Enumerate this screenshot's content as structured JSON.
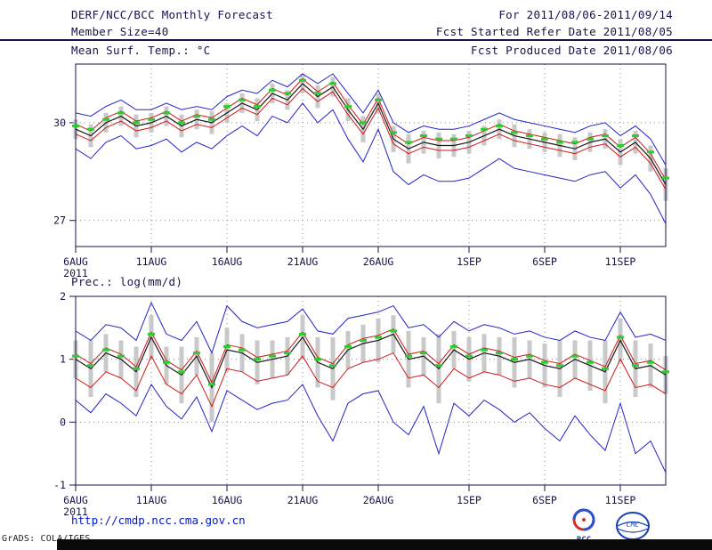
{
  "header": {
    "title": "DERF/NCC/BCC Monthly Forecast",
    "forecast_range": "For 2011/08/06-2011/09/14",
    "member_size": "Member Size=40",
    "refer_date": "Fcst Started Refer Date 2011/08/05",
    "produced_date": "Fcst Produced Date 2011/08/06"
  },
  "footer": {
    "url": "http://cmdp.ncc.cma.gov.cn",
    "credit": "GrADS: COLA/IGES",
    "logo_left_label": "BCC",
    "logo_right_label": "CMC"
  },
  "chart_data": [
    {
      "type": "line",
      "title": "Mean Surf. Temp.: °C",
      "x": {
        "count": 40,
        "start": "6AUG2011",
        "end": "14SEP2011",
        "year": "2011",
        "tick_positions": [
          0,
          5,
          10,
          15,
          20,
          26,
          31,
          36
        ],
        "tick_labels": [
          "6AUG",
          "11AUG",
          "16AUG",
          "21AUG",
          "26AUG",
          "1SEP",
          "6SEP",
          "11SEP"
        ]
      },
      "ylim": [
        26.2,
        31.8
      ],
      "yticks": [
        27,
        30
      ],
      "grid": "dotted",
      "axis_color": "#15154a",
      "spread_bars": {
        "name": "ensemble-spread-bar",
        "color": "#c9c9c9",
        "low": [
          29.5,
          29.25,
          29.7,
          29.9,
          29.55,
          29.7,
          29.9,
          29.55,
          29.8,
          29.65,
          30.0,
          30.3,
          30.05,
          30.6,
          30.4,
          30.9,
          30.45,
          30.8,
          30.05,
          29.4,
          30.3,
          29.1,
          28.75,
          29.05,
          28.9,
          28.95,
          29.05,
          29.3,
          29.5,
          29.25,
          29.2,
          29.1,
          28.95,
          28.85,
          29.1,
          29.2,
          28.7,
          29.05,
          28.5,
          27.6
        ],
        "high": [
          30.1,
          29.95,
          30.3,
          30.5,
          30.25,
          30.3,
          30.5,
          30.25,
          30.4,
          30.35,
          30.6,
          30.9,
          30.75,
          31.2,
          31.0,
          31.5,
          31.15,
          31.4,
          30.75,
          30.2,
          30.9,
          29.9,
          29.65,
          29.75,
          29.7,
          29.65,
          29.75,
          29.9,
          30.1,
          29.95,
          29.8,
          29.7,
          29.65,
          29.55,
          29.7,
          29.8,
          29.5,
          29.75,
          29.3,
          28.6
        ]
      },
      "series": [
        {
          "name": "ensemble max",
          "style": "line",
          "color": "#2323c8",
          "width": 1,
          "values": [
            30.3,
            30.2,
            30.5,
            30.7,
            30.4,
            30.4,
            30.6,
            30.4,
            30.5,
            30.4,
            30.8,
            31.0,
            30.9,
            31.3,
            31.1,
            31.5,
            31.2,
            31.5,
            30.9,
            30.3,
            31.0,
            30.0,
            29.7,
            29.9,
            29.8,
            29.8,
            29.9,
            30.1,
            30.3,
            30.1,
            30.0,
            29.9,
            29.8,
            29.7,
            29.9,
            30.0,
            29.6,
            29.9,
            29.5,
            28.7
          ]
        },
        {
          "name": "ensemble min",
          "style": "line",
          "color": "#2323c8",
          "width": 1,
          "values": [
            29.2,
            28.9,
            29.4,
            29.6,
            29.2,
            29.3,
            29.5,
            29.1,
            29.4,
            29.2,
            29.6,
            29.9,
            29.6,
            30.2,
            30.0,
            30.6,
            30.0,
            30.4,
            29.5,
            28.8,
            29.8,
            28.5,
            28.1,
            28.4,
            28.2,
            28.2,
            28.3,
            28.6,
            28.9,
            28.6,
            28.5,
            28.4,
            28.3,
            28.2,
            28.4,
            28.5,
            28.0,
            28.4,
            27.8,
            26.9
          ]
        },
        {
          "name": "upper bound",
          "style": "line",
          "color": "#d01818",
          "width": 1,
          "values": [
            29.95,
            29.75,
            30.15,
            30.35,
            30.05,
            30.15,
            30.35,
            30.05,
            30.25,
            30.15,
            30.45,
            30.75,
            30.55,
            31.05,
            30.85,
            31.35,
            30.95,
            31.25,
            30.55,
            29.95,
            30.75,
            29.65,
            29.35,
            29.55,
            29.45,
            29.45,
            29.55,
            29.75,
            29.95,
            29.75,
            29.65,
            29.55,
            29.45,
            29.35,
            29.55,
            29.65,
            29.25,
            29.55,
            29.05,
            28.25
          ]
        },
        {
          "name": "lower bound",
          "style": "line",
          "color": "#d01818",
          "width": 1,
          "values": [
            29.65,
            29.45,
            29.85,
            30.05,
            29.75,
            29.85,
            30.05,
            29.75,
            29.95,
            29.85,
            30.15,
            30.45,
            30.25,
            30.75,
            30.55,
            31.05,
            30.65,
            30.95,
            30.25,
            29.65,
            30.45,
            29.35,
            29.05,
            29.25,
            29.15,
            29.15,
            29.25,
            29.45,
            29.65,
            29.45,
            29.35,
            29.25,
            29.15,
            29.05,
            29.25,
            29.35,
            28.95,
            29.25,
            28.75,
            27.95
          ]
        },
        {
          "name": "ensemble mean",
          "style": "line",
          "color": "#1a1a1a",
          "width": 1.2,
          "values": [
            29.8,
            29.6,
            30.0,
            30.2,
            29.9,
            30.0,
            30.2,
            29.9,
            30.1,
            30.0,
            30.3,
            30.6,
            30.4,
            30.9,
            30.7,
            31.2,
            30.8,
            31.1,
            30.4,
            29.8,
            30.6,
            29.5,
            29.2,
            29.4,
            29.3,
            29.3,
            29.4,
            29.6,
            29.8,
            29.6,
            29.5,
            29.4,
            29.3,
            29.2,
            29.4,
            29.5,
            29.1,
            29.4,
            28.9,
            28.1
          ]
        },
        {
          "name": "observation",
          "style": "dashes",
          "color": "#2ecc2e",
          "width": 3,
          "values": [
            29.9,
            29.8,
            30.1,
            30.3,
            30.0,
            30.1,
            30.3,
            30.0,
            30.2,
            30.1,
            30.5,
            30.7,
            30.5,
            31.0,
            30.9,
            31.3,
            30.9,
            31.2,
            30.5,
            30.0,
            30.7,
            29.7,
            29.4,
            29.6,
            29.5,
            29.5,
            29.6,
            29.8,
            29.9,
            29.7,
            29.6,
            29.5,
            29.4,
            29.4,
            29.5,
            29.6,
            29.3,
            29.6,
            29.1,
            28.3
          ]
        }
      ]
    },
    {
      "type": "line",
      "title": "Prec.: log(mm/d)",
      "x": {
        "count": 40,
        "start": "6AUG2011",
        "end": "14SEP2011",
        "year": "2011",
        "tick_positions": [
          0,
          5,
          10,
          15,
          20,
          26,
          31,
          36
        ],
        "tick_labels": [
          "6AUG",
          "11AUG",
          "16AUG",
          "21AUG",
          "26AUG",
          "1SEP",
          "6SEP",
          "11SEP"
        ]
      },
      "ylim": [
        -1,
        2
      ],
      "yticks": [
        -1,
        0,
        1,
        2
      ],
      "grid": "dotted",
      "axis_color": "#15154a",
      "spread_bars": {
        "name": "ensemble-spread-bar",
        "color": "#c9c9c9",
        "low": [
          0.7,
          0.4,
          0.8,
          0.7,
          0.4,
          1.0,
          0.6,
          0.3,
          0.75,
          0.0,
          0.8,
          0.8,
          0.6,
          0.7,
          0.75,
          1.0,
          0.55,
          0.35,
          0.85,
          0.95,
          0.95,
          1.1,
          0.55,
          0.75,
          0.3,
          0.85,
          0.65,
          0.8,
          0.75,
          0.55,
          0.7,
          0.55,
          0.4,
          0.7,
          0.5,
          0.3,
          0.95,
          0.4,
          0.55,
          0.45
        ],
        "high": [
          1.3,
          1.3,
          1.4,
          1.3,
          1.2,
          1.7,
          1.2,
          1.2,
          1.35,
          1.1,
          1.5,
          1.4,
          1.3,
          1.3,
          1.35,
          1.7,
          1.35,
          1.35,
          1.45,
          1.55,
          1.65,
          1.7,
          1.45,
          1.35,
          1.4,
          1.45,
          1.35,
          1.4,
          1.35,
          1.35,
          1.3,
          1.25,
          1.3,
          1.3,
          1.3,
          1.3,
          1.65,
          1.3,
          1.25,
          1.05
        ]
      },
      "series": [
        {
          "name": "ensemble max",
          "style": "line",
          "color": "#2323c8",
          "width": 1,
          "values": [
            1.45,
            1.3,
            1.55,
            1.5,
            1.3,
            1.9,
            1.4,
            1.3,
            1.6,
            1.1,
            1.85,
            1.6,
            1.5,
            1.55,
            1.6,
            1.8,
            1.45,
            1.4,
            1.65,
            1.7,
            1.75,
            1.85,
            1.5,
            1.55,
            1.35,
            1.6,
            1.45,
            1.55,
            1.5,
            1.4,
            1.45,
            1.35,
            1.3,
            1.45,
            1.35,
            1.3,
            1.75,
            1.35,
            1.4,
            1.3
          ]
        },
        {
          "name": "ensemble min",
          "style": "line",
          "color": "#2323c8",
          "width": 1,
          "values": [
            0.35,
            0.15,
            0.45,
            0.3,
            0.1,
            0.6,
            0.25,
            0.05,
            0.4,
            -0.15,
            0.5,
            0.35,
            0.2,
            0.3,
            0.35,
            0.6,
            0.1,
            -0.3,
            0.3,
            0.45,
            0.5,
            0.0,
            -0.2,
            0.25,
            -0.5,
            0.3,
            0.1,
            0.35,
            0.2,
            0.0,
            0.15,
            -0.1,
            -0.3,
            0.1,
            -0.2,
            -0.45,
            0.3,
            -0.5,
            -0.3,
            -0.8
          ]
        },
        {
          "name": "upper bound",
          "style": "line",
          "color": "#d01818",
          "width": 1,
          "values": [
            1.08,
            0.93,
            1.18,
            1.08,
            0.88,
            1.43,
            0.98,
            0.83,
            1.13,
            0.63,
            1.23,
            1.18,
            1.03,
            1.08,
            1.13,
            1.43,
            1.03,
            0.93,
            1.23,
            1.33,
            1.38,
            1.48,
            1.08,
            1.13,
            0.93,
            1.23,
            1.08,
            1.18,
            1.13,
            1.03,
            1.08,
            0.98,
            0.93,
            1.08,
            0.98,
            0.88,
            1.38,
            0.93,
            0.98,
            0.83
          ]
        },
        {
          "name": "lower bound",
          "style": "line",
          "color": "#d01818",
          "width": 1,
          "values": [
            0.7,
            0.55,
            0.8,
            0.7,
            0.5,
            1.05,
            0.6,
            0.45,
            0.75,
            0.25,
            0.85,
            0.8,
            0.65,
            0.7,
            0.75,
            1.05,
            0.65,
            0.55,
            0.85,
            0.95,
            1.0,
            1.1,
            0.7,
            0.75,
            0.55,
            0.85,
            0.7,
            0.8,
            0.75,
            0.65,
            0.7,
            0.6,
            0.55,
            0.7,
            0.6,
            0.5,
            1.0,
            0.55,
            0.6,
            0.45
          ]
        },
        {
          "name": "ensemble mean",
          "style": "line",
          "color": "#1a1a1a",
          "width": 1.2,
          "values": [
            1.0,
            0.85,
            1.1,
            1.0,
            0.8,
            1.35,
            0.9,
            0.75,
            1.05,
            0.55,
            1.15,
            1.1,
            0.95,
            1.0,
            1.05,
            1.35,
            0.95,
            0.85,
            1.15,
            1.25,
            1.3,
            1.4,
            1.0,
            1.05,
            0.85,
            1.15,
            1.0,
            1.1,
            1.05,
            0.95,
            1.0,
            0.9,
            0.85,
            1.0,
            0.9,
            0.8,
            1.3,
            0.85,
            0.9,
            0.75
          ]
        },
        {
          "name": "observation",
          "style": "dashes",
          "color": "#2ecc2e",
          "width": 3,
          "values": [
            1.05,
            0.9,
            1.15,
            1.05,
            0.85,
            1.4,
            0.95,
            0.8,
            1.1,
            0.6,
            1.2,
            1.15,
            1.0,
            1.05,
            1.1,
            1.4,
            1.0,
            0.9,
            1.2,
            1.3,
            1.35,
            1.45,
            1.05,
            1.1,
            0.9,
            1.2,
            1.05,
            1.15,
            1.1,
            1.0,
            1.05,
            0.95,
            0.9,
            1.05,
            0.95,
            0.85,
            1.35,
            0.9,
            0.95,
            0.8
          ]
        }
      ]
    }
  ]
}
